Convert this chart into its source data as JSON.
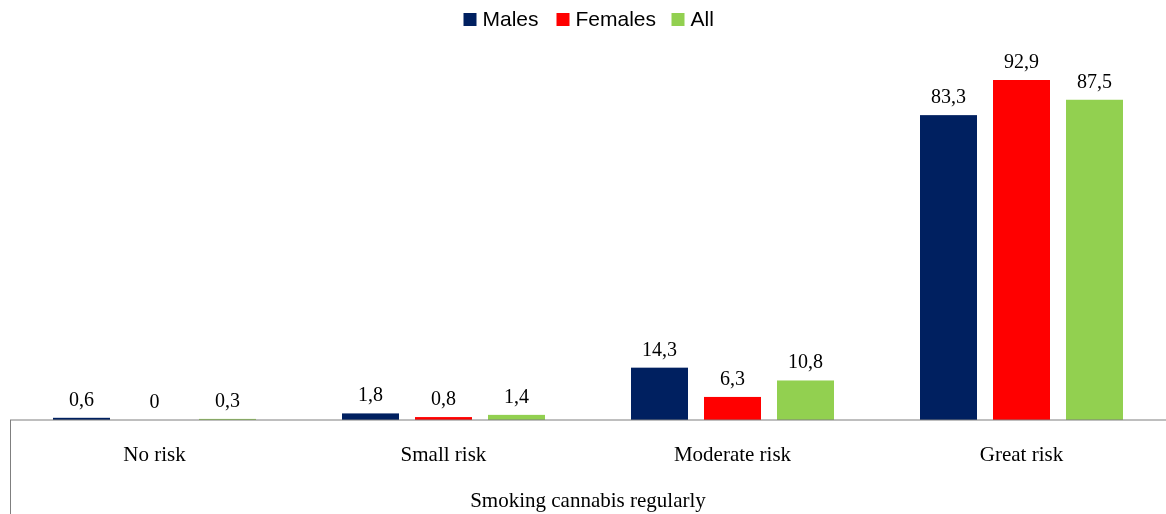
{
  "chart_data": {
    "type": "bar",
    "xlabel": "Smoking cannabis regularly",
    "categories": [
      "No risk",
      "Small risk",
      "Moderate risk",
      "Great risk"
    ],
    "series": [
      {
        "name": "Males",
        "color": "#002060",
        "values": [
          0.6,
          1.8,
          14.3,
          83.3
        ],
        "value_labels": [
          "0,6",
          "1,8",
          "14,3",
          "83,3"
        ]
      },
      {
        "name": "Females",
        "color": "#ff0000",
        "values": [
          0,
          0.8,
          6.3,
          92.9
        ],
        "value_labels": [
          "0",
          "0,8",
          "6,3",
          "92,9"
        ]
      },
      {
        "name": "All",
        "color": "#92d050",
        "values": [
          0.3,
          1.4,
          10.8,
          87.5
        ],
        "value_labels": [
          "0,3",
          "1,4",
          "10,8",
          "87,5"
        ]
      }
    ],
    "legend": "top"
  }
}
